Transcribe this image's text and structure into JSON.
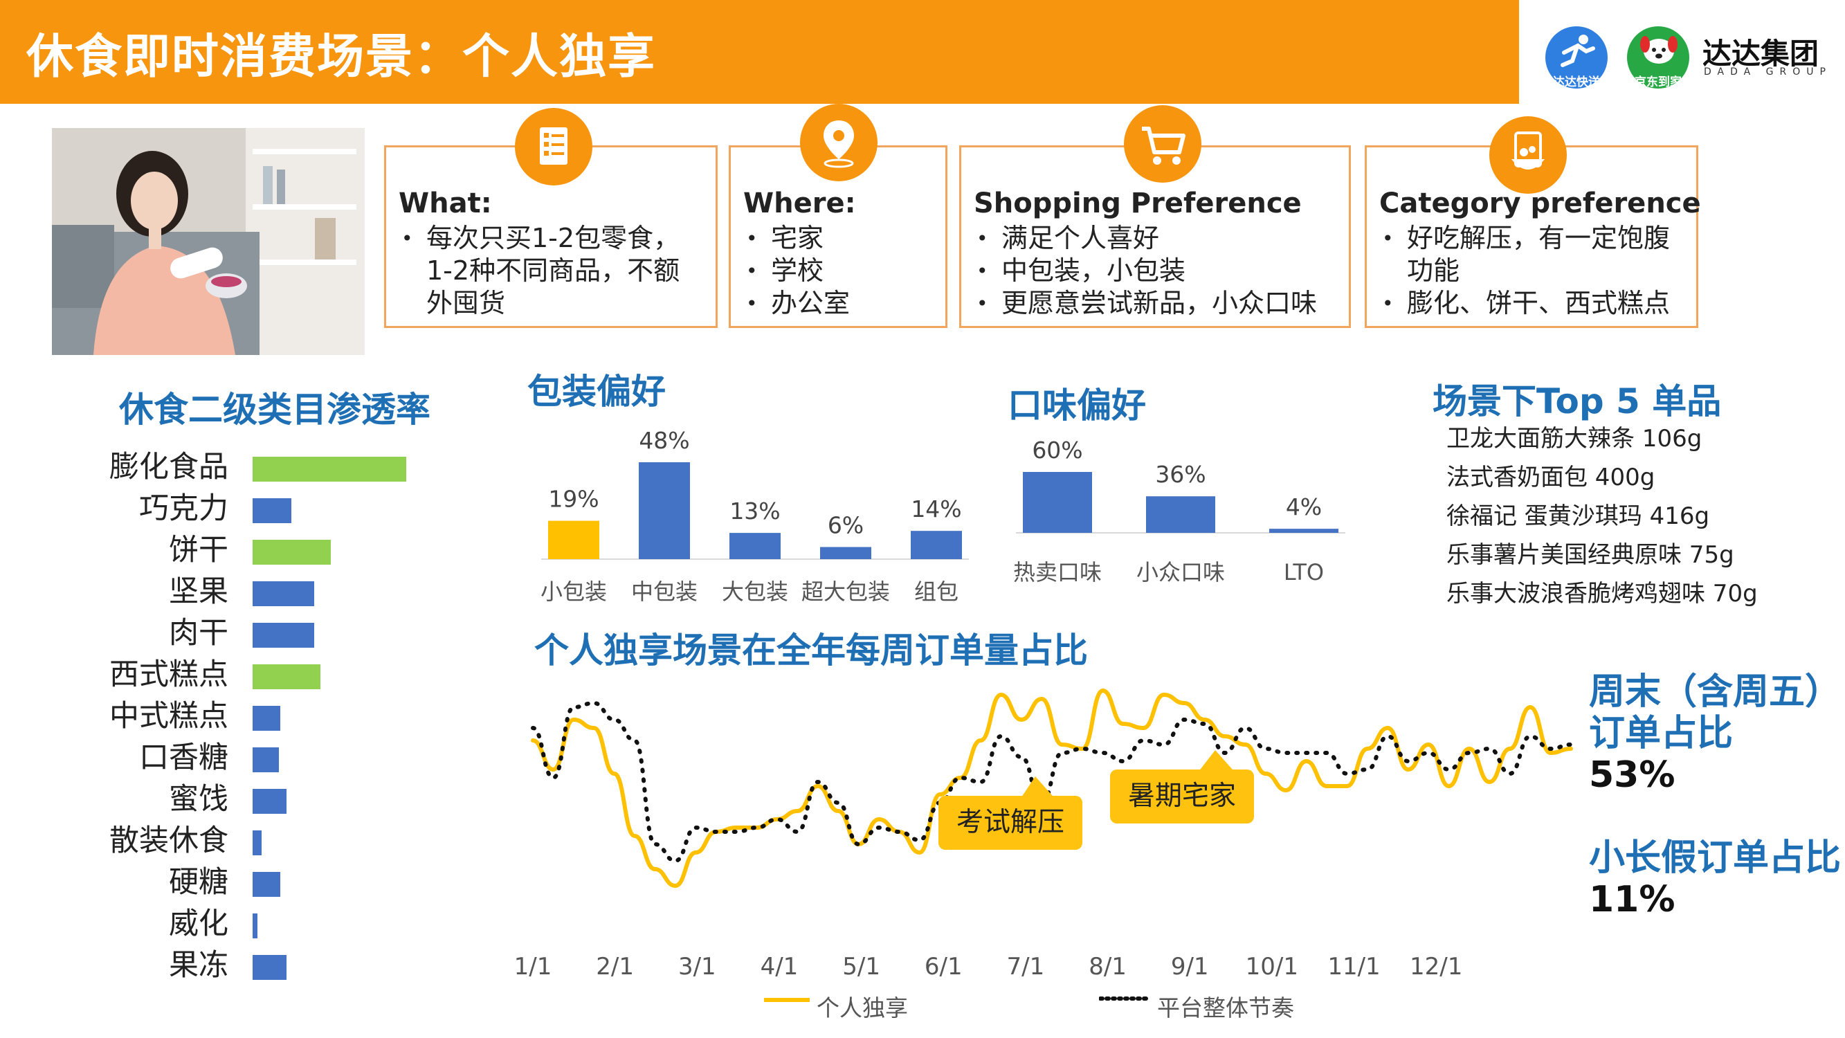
{
  "header": {
    "title": "休食即时消费场景：个人独享",
    "bg": "#F7950E"
  },
  "logos": {
    "dada": {
      "caption": "达达快送",
      "color": "#2F7FE0"
    },
    "jd": {
      "caption": "京东到家",
      "color": "#27A844"
    },
    "group": {
      "name": "达达集团",
      "sub": "DADA GROUP"
    }
  },
  "cards": [
    {
      "icon": "document-list-icon",
      "title": "What:",
      "items": [
        "每次只买1-2包零食，1-2种不同商品，不额外囤货"
      ]
    },
    {
      "icon": "location-pin-icon",
      "title": "Where:",
      "items": [
        "宅家",
        "学校",
        "办公室"
      ]
    },
    {
      "icon": "shopping-cart-icon",
      "title": "Shopping Preference",
      "items": [
        "满足个人喜好",
        "中包装，小包装",
        "更愿意尝试新品，小众口味"
      ]
    },
    {
      "icon": "food-bowl-icon",
      "title": "Category preference",
      "items": [
        "好吃解压，有一定饱腹功能",
        "膨化、饼干、西式糕点"
      ]
    }
  ],
  "penetration": {
    "title": "休食二级类目渗透率",
    "chart_data": {
      "type": "bar",
      "orientation": "horizontal",
      "categories": [
        "膨化食品",
        "巧克力",
        "饼干",
        "坚果",
        "肉干",
        "西式糕点",
        "中式糕点",
        "口香糖",
        "蜜饯",
        "散装休食",
        "硬糖",
        "威化",
        "果冻"
      ],
      "values": [
        100,
        25,
        51,
        40,
        40,
        44,
        18,
        17,
        22,
        6,
        18,
        3,
        22
      ],
      "highlight": [
        true,
        false,
        true,
        false,
        false,
        true,
        false,
        false,
        false,
        false,
        false,
        false,
        false
      ],
      "colors": {
        "highlight": "#92D050",
        "normal": "#4472C4"
      }
    }
  },
  "packaging": {
    "title": "包装偏好",
    "chart_data": {
      "type": "bar",
      "categories": [
        "小包装",
        "中包装",
        "大包装",
        "超大包装",
        "组包"
      ],
      "values": [
        19,
        48,
        13,
        6,
        14
      ],
      "labels": [
        "19%",
        "48%",
        "13%",
        "6%",
        "14%"
      ],
      "colors": [
        "#FFC000",
        "#4472C4",
        "#4472C4",
        "#4472C4",
        "#4472C4"
      ]
    }
  },
  "flavor": {
    "title": "口味偏好",
    "chart_data": {
      "type": "bar",
      "categories": [
        "热卖口味",
        "小众口味",
        "LTO"
      ],
      "values": [
        60,
        36,
        4
      ],
      "labels": [
        "60%",
        "36%",
        "4%"
      ],
      "colors": [
        "#4472C4",
        "#4472C4",
        "#4472C4"
      ]
    }
  },
  "top5": {
    "title": "场景下Top 5 单品",
    "items": [
      "卫龙大面筋大辣条 106g",
      "法式香奶面包 400g",
      "徐福记 蛋黄沙琪玛 416g",
      "乐事薯片美国经典原味 75g",
      "乐事大波浪香脆烤鸡翅味 70g"
    ]
  },
  "weekly": {
    "title": "个人独享场景在全年每周订单量占比",
    "chart_data": {
      "type": "line",
      "x_ticks": [
        "1/1",
        "2/1",
        "3/1",
        "4/1",
        "5/1",
        "6/1",
        "7/1",
        "8/1",
        "9/1",
        "10/1",
        "11/1",
        "12/1"
      ],
      "weeks": 52,
      "series": [
        {
          "name": "个人独享",
          "style": "solid",
          "color": "#FFC000",
          "values": [
            55,
            48,
            60,
            58,
            47,
            32,
            24,
            20,
            28,
            33,
            34,
            34,
            36,
            38,
            44,
            38,
            30,
            36,
            33,
            28,
            42,
            46,
            55,
            66,
            60,
            65,
            54,
            53,
            67,
            59,
            58,
            66,
            64,
            60,
            56,
            54,
            47,
            43,
            50,
            44,
            44,
            53,
            58,
            48,
            54,
            44,
            53,
            45,
            53,
            63,
            52,
            53
          ]
        },
        {
          "name": "平台整体节奏",
          "style": "dotted",
          "color": "#111111",
          "values": [
            58,
            46,
            63,
            64,
            60,
            55,
            30,
            26,
            34,
            33,
            33,
            34,
            36,
            33,
            45,
            40,
            30,
            34,
            33,
            31,
            40,
            46,
            45,
            56,
            51,
            40,
            52,
            53,
            52,
            50,
            55,
            54,
            60,
            59,
            52,
            58,
            53,
            52,
            52,
            52,
            47,
            48,
            56,
            50,
            52,
            48,
            52,
            53,
            47,
            56,
            53,
            54
          ]
        }
      ],
      "annotations": [
        "考试解压",
        "暑期宅家"
      ]
    },
    "legend": [
      "个人独享",
      "平台整体节奏"
    ]
  },
  "stats": [
    {
      "title": "周末（含周五）\n订单占比",
      "value": "53%"
    },
    {
      "title": "小长假订单占比",
      "value": "11%"
    }
  ]
}
